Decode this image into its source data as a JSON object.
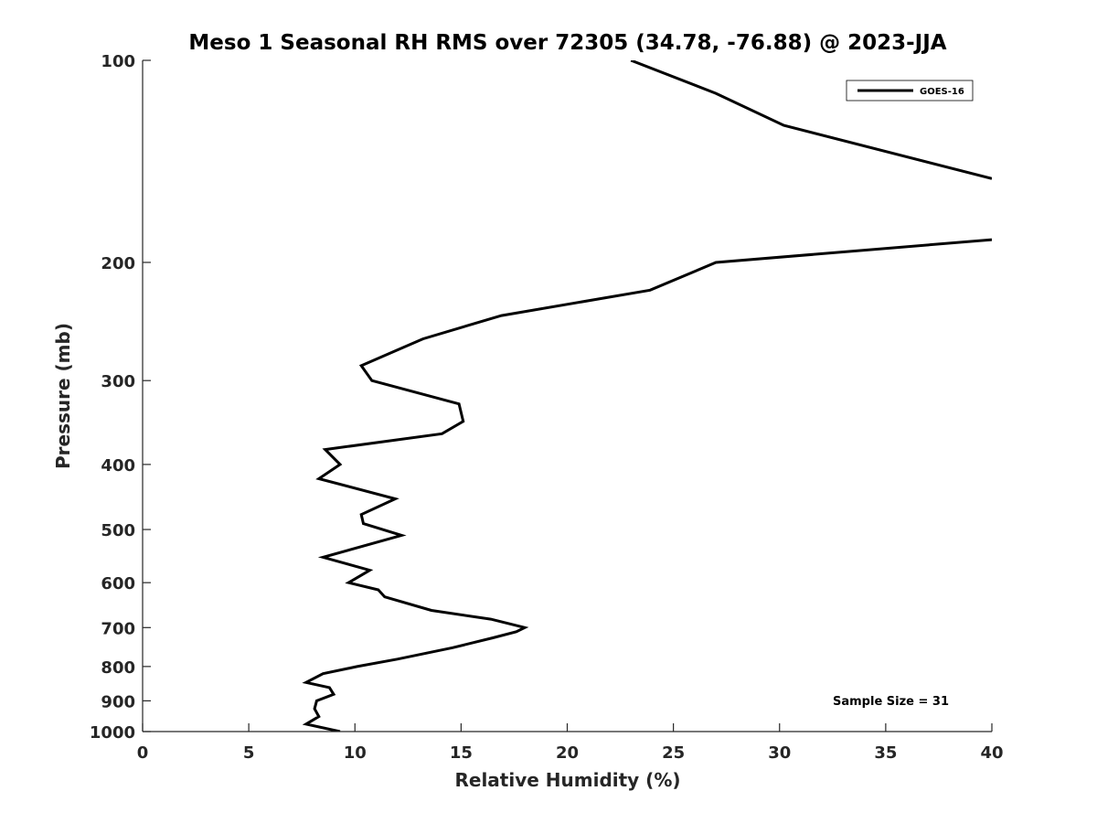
{
  "chart_data": {
    "type": "line",
    "title": "Meso 1 Seasonal RH RMS over 72305 (34.78, -76.88) @ 2023-JJA",
    "xlabel": "Relative Humidity (%)",
    "ylabel": "Pressure (mb)",
    "xlim": [
      0,
      40
    ],
    "ylim": [
      100,
      1000
    ],
    "yscale": "log",
    "y_reversed": true,
    "x_ticks": [
      0,
      5,
      10,
      15,
      20,
      25,
      30,
      35,
      40
    ],
    "y_ticks": [
      100,
      200,
      300,
      400,
      500,
      600,
      700,
      800,
      900,
      1000
    ],
    "grid": false,
    "legend_position": "top-right",
    "annotation": "Sample Size = 31",
    "series": [
      {
        "name": "GOES-16",
        "color": "#000000",
        "segments": [
          {
            "x": [
              23.0,
              27.0,
              30.2,
              40.0
            ],
            "y": [
              100,
              112,
              125,
              150
            ]
          },
          {
            "x": [
              40.0,
              27.0,
              23.9,
              16.9,
              13.2,
              10.3,
              10.8,
              14.9,
              15.1,
              14.1,
              8.6,
              9.3,
              8.3,
              11.9,
              10.3,
              10.4,
              12.2,
              8.5,
              10.7,
              9.7,
              11.1,
              11.4,
              13.6,
              16.4,
              17.2,
              18.0,
              17.6,
              16.5,
              14.6,
              12.0,
              10.1,
              8.5,
              7.7,
              8.8,
              9.0,
              8.2,
              8.1,
              8.3,
              7.7,
              9.3
            ],
            "y": [
              185,
              200,
              220,
              240,
              260,
              285,
              300,
              325,
              345,
              360,
              380,
              400,
              420,
              450,
              475,
              490,
              510,
              550,
              575,
              600,
              615,
              630,
              660,
              680,
              690,
              700,
              710,
              725,
              750,
              780,
              800,
              820,
              845,
              860,
              880,
              900,
              925,
              950,
              975,
              1000
            ]
          }
        ]
      }
    ]
  }
}
